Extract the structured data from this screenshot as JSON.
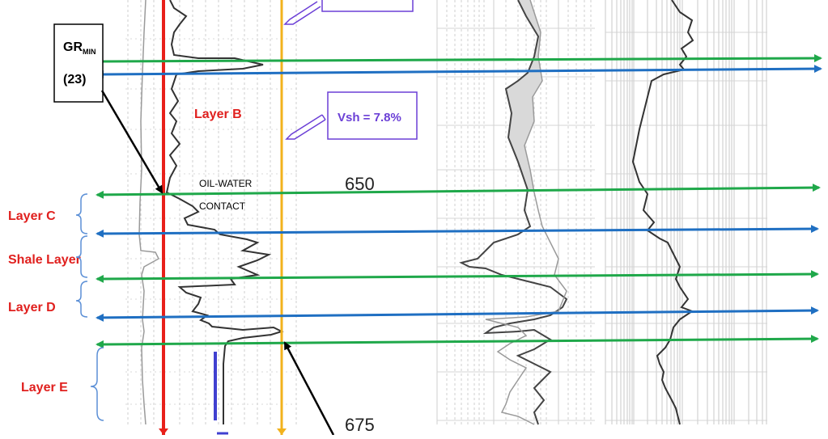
{
  "labels": {
    "gr_min_main": "GR",
    "gr_min_sub": "MIN",
    "gr_min_value": "(23)",
    "layer_b": "Layer B",
    "layer_c": "Layer C",
    "shale_layer": "Shale Layer",
    "layer_d": "Layer D",
    "layer_e": "Layer E",
    "vsh": "Vsh = 7.8%",
    "owc_line1": "OIL-WATER",
    "owc_line2": "CONTACT",
    "depth_650": "650",
    "depth_675": "675"
  },
  "colors": {
    "gr_min_line": "#e8201a",
    "gr_max_line": "#f2b21c",
    "green_marker": "#1fa84a",
    "blue_marker": "#1f6fc2",
    "label_red": "#e0201e",
    "vsh_purple": "#6b3fd6",
    "grid": "#c9c9c9",
    "log_trace": "#333333"
  }
}
